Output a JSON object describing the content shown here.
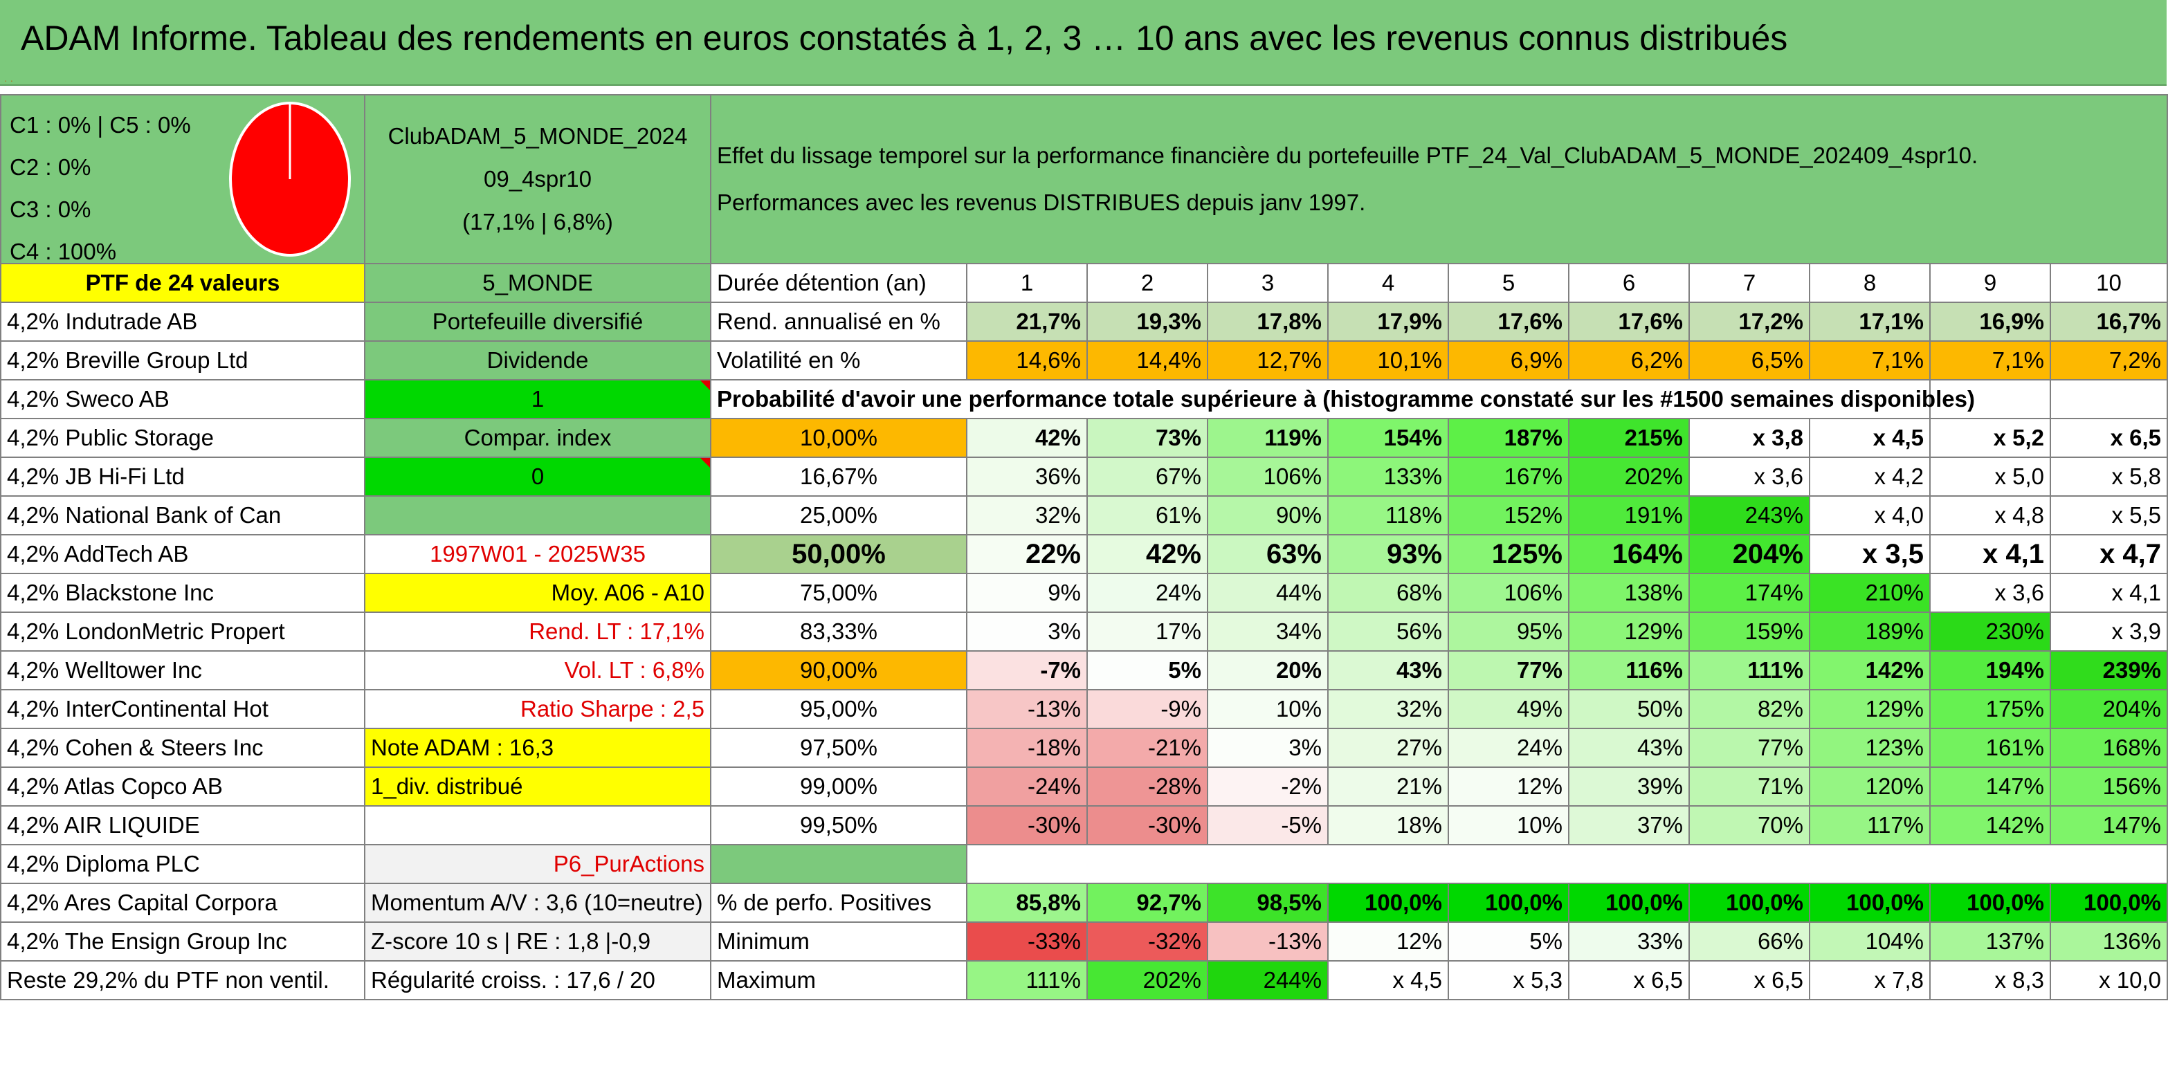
{
  "title": "ADAM Informe. Tableau des rendements en euros constatés à 1, 2, 3 … 10 ans avec les revenus connus distribués",
  "title_marks": "· ·",
  "allocation": {
    "lines": [
      "C1 : 0% | C5 : 0%",
      "C2 : 0%",
      "C3 : 0%",
      "C4 : 100%"
    ],
    "pie_color": "#ff0000"
  },
  "portfolio": {
    "name_line1": "ClubADAM_5_MONDE_2024",
    "name_line2": "09_4spr10",
    "name_line3": "(17,1% | 6,8%)"
  },
  "description": {
    "line1": "Effet du lissage temporel sur la performance financière du portefeuille PTF_24_Val_ClubADAM_5_MONDE_202409_4spr10.",
    "line2": "Performances avec les revenus DISTRIBUES depuis janv 1997."
  },
  "left_header": "PTF de 24 valeurs",
  "holdings": [
    "4,2% Indutrade AB",
    "4,2% Breville Group Ltd",
    "4,2% Sweco AB",
    "4,2% Public Storage",
    "4,2% JB Hi-Fi Ltd",
    "4,2% National Bank of Can",
    "4,2% AddTech AB",
    "4,2% Blackstone Inc",
    "4,2% LondonMetric Propert",
    "4,2% Welltower Inc",
    "4,2% InterContinental Hot",
    "4,2% Cohen & Steers Inc",
    "4,2% Atlas Copco AB",
    "4,2% AIR LIQUIDE",
    "4,2% Diploma PLC",
    "4,2% Ares Capital Corpora",
    "4,2% The Ensign Group Inc",
    "Reste 29,2% du PTF non ventil."
  ],
  "info": {
    "zone": "5_MONDE",
    "type": "Portefeuille diversifié",
    "income": "Dividende",
    "value1": "1",
    "compar": "Compar. index",
    "value0": "0",
    "period": "1997W01 - 2025W35",
    "moy": "Moy. A06 - A10",
    "rend_lt": "Rend. LT : 17,1%",
    "vol_lt": "Vol. LT : 6,8%",
    "sharpe": "Ratio Sharpe : 2,5",
    "note": "Note ADAM : 16,3",
    "div": "1_div. distribué",
    "purp": "P6_PurActions",
    "momentum": "Momentum A/V : 3,6 (10=neutre)",
    "zscore": "Z-score 10 s | RE : 1,8 |-0,9",
    "regularite": "Régularité croiss. : 17,6 / 20"
  },
  "table": {
    "duration_label": "Durée détention (an)",
    "years": [
      "1",
      "2",
      "3",
      "4",
      "5",
      "6",
      "7",
      "8",
      "9",
      "10"
    ],
    "rend_label": "Rend. annualisé en %",
    "rend": [
      "21,7%",
      "19,3%",
      "17,8%",
      "17,9%",
      "17,6%",
      "17,6%",
      "17,2%",
      "17,1%",
      "16,9%",
      "16,7%"
    ],
    "vol_label": "Volatilité en %",
    "vol": [
      "14,6%",
      "14,4%",
      "12,7%",
      "10,1%",
      "6,9%",
      "6,2%",
      "6,5%",
      "7,1%",
      "7,1%",
      "7,2%"
    ],
    "prob_label": "Probabilité d'avoir une performance totale supérieure à (histogramme constaté sur les #1500 semaines disponibles)",
    "prob_rows": [
      {
        "p": "10,00%",
        "v": [
          "42%",
          "73%",
          "119%",
          "154%",
          "187%",
          "215%",
          "x 3,8",
          "x 4,5",
          "x 5,2",
          "x 6,5"
        ]
      },
      {
        "p": "16,67%",
        "v": [
          "36%",
          "67%",
          "106%",
          "133%",
          "167%",
          "202%",
          "x 3,6",
          "x 4,2",
          "x 5,0",
          "x 5,8"
        ]
      },
      {
        "p": "25,00%",
        "v": [
          "32%",
          "61%",
          "90%",
          "118%",
          "152%",
          "191%",
          "243%",
          "x 4,0",
          "x 4,8",
          "x 5,5"
        ]
      },
      {
        "p": "50,00%",
        "v": [
          "22%",
          "42%",
          "63%",
          "93%",
          "125%",
          "164%",
          "204%",
          "x 3,5",
          "x 4,1",
          "x 4,7"
        ]
      },
      {
        "p": "75,00%",
        "v": [
          "9%",
          "24%",
          "44%",
          "68%",
          "106%",
          "138%",
          "174%",
          "210%",
          "x 3,6",
          "x 4,1"
        ]
      },
      {
        "p": "83,33%",
        "v": [
          "3%",
          "17%",
          "34%",
          "56%",
          "95%",
          "129%",
          "159%",
          "189%",
          "230%",
          "x 3,9"
        ]
      },
      {
        "p": "90,00%",
        "v": [
          "-7%",
          "5%",
          "20%",
          "43%",
          "77%",
          "116%",
          "111%",
          "142%",
          "194%",
          "239%"
        ]
      },
      {
        "p": "95,00%",
        "v": [
          "-13%",
          "-9%",
          "10%",
          "32%",
          "49%",
          "50%",
          "82%",
          "129%",
          "175%",
          "204%"
        ]
      },
      {
        "p": "97,50%",
        "v": [
          "-18%",
          "-21%",
          "3%",
          "27%",
          "24%",
          "43%",
          "77%",
          "123%",
          "161%",
          "168%"
        ]
      },
      {
        "p": "99,00%",
        "v": [
          "-24%",
          "-28%",
          "-2%",
          "21%",
          "12%",
          "39%",
          "71%",
          "120%",
          "147%",
          "156%"
        ]
      },
      {
        "p": "99,50%",
        "v": [
          "-30%",
          "-30%",
          "-5%",
          "18%",
          "10%",
          "37%",
          "70%",
          "117%",
          "142%",
          "147%"
        ]
      }
    ],
    "pos_label": "% de perfo. Positives",
    "pos": [
      "85,8%",
      "92,7%",
      "98,5%",
      "100,0%",
      "100,0%",
      "100,0%",
      "100,0%",
      "100,0%",
      "100,0%",
      "100,0%"
    ],
    "min_label": "Minimum",
    "min": [
      "-33%",
      "-32%",
      "-13%",
      "12%",
      "5%",
      "33%",
      "66%",
      "104%",
      "137%",
      "136%"
    ],
    "max_label": "Maximum",
    "max": [
      "111%",
      "202%",
      "244%",
      "x 4,5",
      "x 5,3",
      "x 6,5",
      "x 6,5",
      "x 7,8",
      "x 8,3",
      "x 10,0"
    ]
  },
  "colors": {
    "header_green": "#7cc97c",
    "yellow": "#ffff00",
    "orange": "#fdb800",
    "bright_green": "#00d800",
    "light_green": "#c6e0b4",
    "red_text": "#e00000"
  }
}
